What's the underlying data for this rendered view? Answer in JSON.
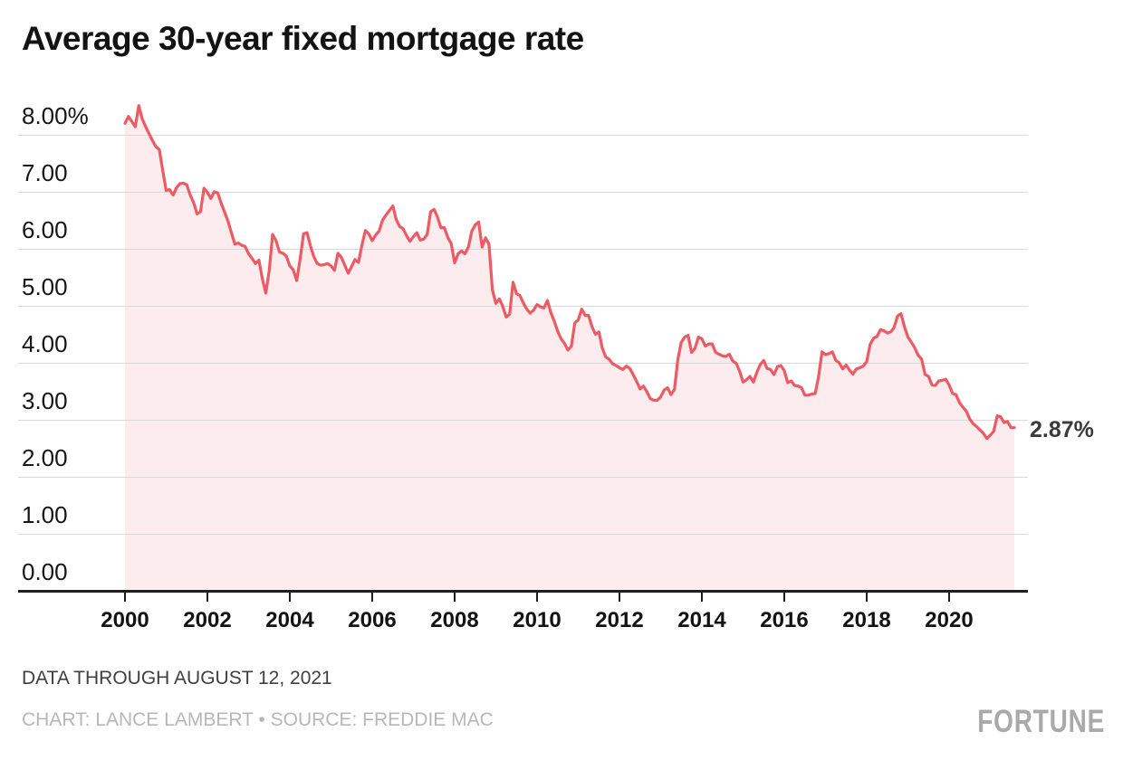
{
  "header": {
    "title": "Average 30-year fixed mortgage rate"
  },
  "chart_data": {
    "type": "area",
    "title": "Average 30-year fixed mortgage rate",
    "series_name": "30-year fixed mortgage rate",
    "unit": "percent",
    "frequency": "monthly",
    "start": "2000-01",
    "end": "2021-08",
    "values": [
      8.21,
      8.33,
      8.24,
      8.15,
      8.52,
      8.29,
      8.15,
      8.03,
      7.91,
      7.8,
      7.75,
      7.38,
      7.03,
      7.05,
      6.95,
      7.08,
      7.15,
      7.16,
      7.13,
      6.95,
      6.82,
      6.62,
      6.66,
      7.07,
      7.0,
      6.89,
      7.01,
      6.99,
      6.81,
      6.65,
      6.49,
      6.29,
      6.09,
      6.11,
      6.07,
      6.05,
      5.92,
      5.84,
      5.75,
      5.81,
      5.48,
      5.23,
      5.63,
      6.26,
      6.15,
      5.95,
      5.93,
      5.88,
      5.71,
      5.64,
      5.45,
      5.83,
      6.27,
      6.29,
      6.06,
      5.87,
      5.75,
      5.72,
      5.73,
      5.75,
      5.71,
      5.63,
      5.93,
      5.86,
      5.72,
      5.58,
      5.7,
      5.82,
      5.77,
      6.07,
      6.33,
      6.27,
      6.15,
      6.25,
      6.32,
      6.51,
      6.6,
      6.68,
      6.76,
      6.52,
      6.4,
      6.36,
      6.24,
      6.14,
      6.22,
      6.29,
      6.16,
      6.18,
      6.26,
      6.66,
      6.7,
      6.57,
      6.38,
      6.38,
      6.21,
      6.1,
      5.76,
      5.92,
      5.97,
      5.92,
      6.04,
      6.32,
      6.43,
      6.48,
      6.04,
      6.2,
      6.09,
      5.29,
      5.05,
      5.13,
      5.0,
      4.81,
      4.86,
      5.42,
      5.22,
      5.19,
      5.06,
      4.95,
      4.88,
      4.93,
      5.03,
      4.99,
      4.97,
      5.1,
      4.89,
      4.74,
      4.56,
      4.43,
      4.35,
      4.23,
      4.3,
      4.71,
      4.76,
      4.95,
      4.84,
      4.84,
      4.64,
      4.51,
      4.55,
      4.27,
      4.11,
      4.07,
      3.99,
      3.96,
      3.92,
      3.89,
      3.95,
      3.91,
      3.8,
      3.68,
      3.55,
      3.6,
      3.5,
      3.38,
      3.35,
      3.35,
      3.41,
      3.53,
      3.57,
      3.45,
      3.54,
      4.07,
      4.37,
      4.46,
      4.49,
      4.19,
      4.26,
      4.46,
      4.43,
      4.3,
      4.34,
      4.34,
      4.19,
      4.16,
      4.13,
      4.12,
      4.16,
      4.04,
      4.0,
      3.86,
      3.67,
      3.71,
      3.77,
      3.67,
      3.84,
      3.98,
      4.05,
      3.91,
      3.89,
      3.8,
      3.94,
      3.96,
      3.87,
      3.66,
      3.69,
      3.61,
      3.6,
      3.57,
      3.44,
      3.44,
      3.46,
      3.47,
      3.77,
      4.2,
      4.15,
      4.17,
      4.2,
      4.05,
      4.01,
      3.9,
      3.97,
      3.88,
      3.81,
      3.9,
      3.92,
      3.95,
      4.03,
      4.33,
      4.44,
      4.47,
      4.59,
      4.57,
      4.53,
      4.55,
      4.63,
      4.83,
      4.87,
      4.64,
      4.46,
      4.37,
      4.27,
      4.14,
      4.07,
      3.8,
      3.77,
      3.62,
      3.61,
      3.69,
      3.7,
      3.72,
      3.62,
      3.47,
      3.45,
      3.31,
      3.23,
      3.16,
      3.02,
      2.94,
      2.89,
      2.83,
      2.77,
      2.68,
      2.74,
      2.81,
      3.08,
      3.06,
      2.96,
      2.98,
      2.87,
      2.87
    ],
    "latest": {
      "date": "2021-08-12",
      "value": 2.87,
      "label": "2.87%"
    },
    "y_axis": {
      "range": [
        0,
        8.9
      ],
      "grid": true,
      "ticks": [
        {
          "value": 8,
          "label": "8.00%"
        },
        {
          "value": 7,
          "label": "7.00"
        },
        {
          "value": 6,
          "label": "6.00"
        },
        {
          "value": 5,
          "label": "5.00"
        },
        {
          "value": 4,
          "label": "4.00"
        },
        {
          "value": 3,
          "label": "3.00"
        },
        {
          "value": 2,
          "label": "2.00"
        },
        {
          "value": 1,
          "label": "1.00"
        },
        {
          "value": 0,
          "label": "0.00"
        }
      ]
    },
    "x_axis": {
      "range": [
        2000,
        2021.67
      ],
      "ticks": [
        {
          "value": 2000,
          "label": "2000"
        },
        {
          "value": 2002,
          "label": "2002"
        },
        {
          "value": 2004,
          "label": "2004"
        },
        {
          "value": 2006,
          "label": "2006"
        },
        {
          "value": 2008,
          "label": "2008"
        },
        {
          "value": 2010,
          "label": "2010"
        },
        {
          "value": 2012,
          "label": "2012"
        },
        {
          "value": 2014,
          "label": "2014"
        },
        {
          "value": 2016,
          "label": "2016"
        },
        {
          "value": 2018,
          "label": "2018"
        },
        {
          "value": 2020,
          "label": "2020"
        }
      ]
    },
    "colors": {
      "line": "#ee5a64",
      "fill": "#fcecee",
      "grid": "#d9d9d9",
      "axis": "#1f1f1f"
    }
  },
  "annotations": {
    "end_label": "2.87%"
  },
  "footer": {
    "data_through": "DATA THROUGH AUGUST 12, 2021",
    "credit": "CHART: LANCE LAMBERT • SOURCE: FREDDIE MAC",
    "brand": "FORTUNE"
  }
}
